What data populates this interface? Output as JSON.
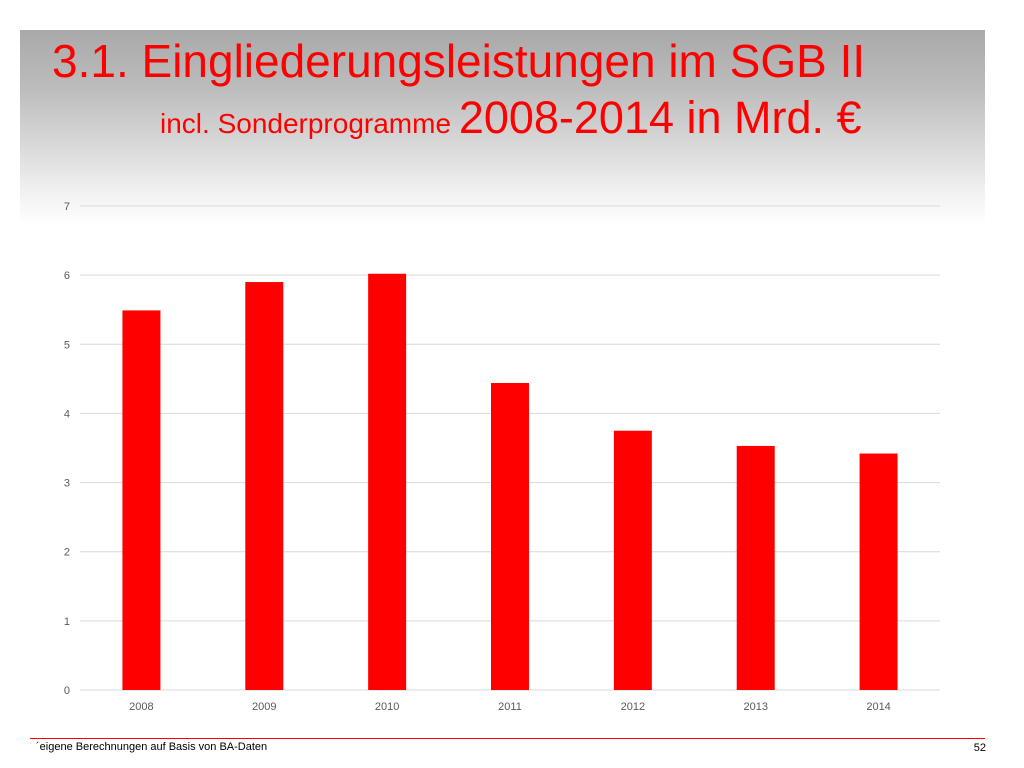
{
  "slide": {
    "title_line1": "3.1. Eingliederungsleistungen im SGB II",
    "title_line2_small": "incl. Sonderprogramme ",
    "title_line2_large": "2008-2014 in Mrd. €",
    "source_note": "´eigene Berechnungen auf Basis von BA-Daten",
    "page_number": "52"
  },
  "colors": {
    "bar": "#ff0000",
    "title": "#ff0000",
    "grid": "#d9d9d9",
    "tick_label": "#595959"
  },
  "chart_data": {
    "type": "bar",
    "title": "",
    "xlabel": "",
    "ylabel": "",
    "categories": [
      "2008",
      "2009",
      "2010",
      "2011",
      "2012",
      "2013",
      "2014"
    ],
    "values": [
      5.49,
      5.9,
      6.02,
      4.44,
      3.75,
      3.53,
      3.42
    ],
    "ylim": [
      0,
      7
    ],
    "yticks": [
      0,
      1,
      2,
      3,
      4,
      5,
      6,
      7
    ],
    "grid": true,
    "legend": "none"
  }
}
